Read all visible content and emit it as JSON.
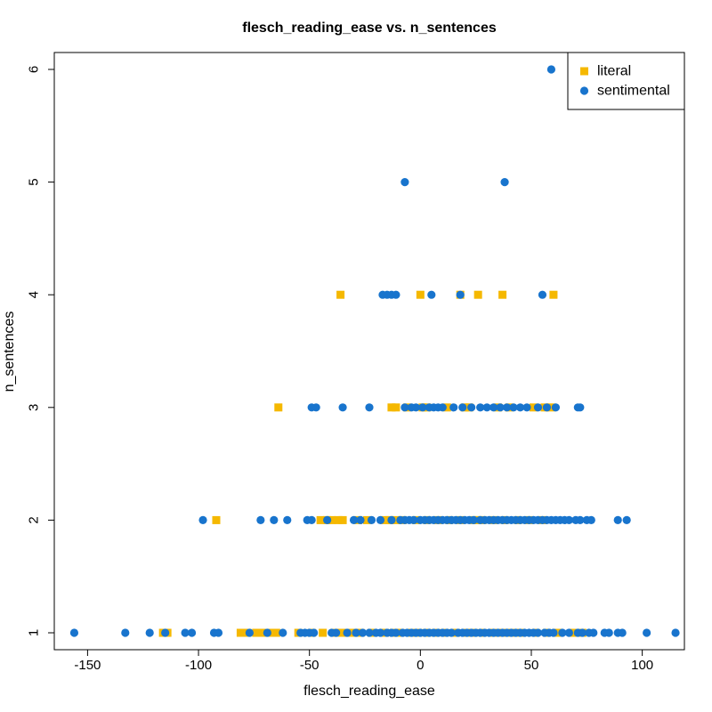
{
  "chart_data": {
    "type": "scatter",
    "title": "flesch_reading_ease vs. n_sentences",
    "xlabel": "flesch_reading_ease",
    "ylabel": "n_sentences",
    "xlim": [
      -165,
      119
    ],
    "ylim": [
      0.85,
      6.15
    ],
    "xticks": [
      -150,
      -100,
      -50,
      0,
      50,
      100
    ],
    "yticks": [
      1,
      2,
      3,
      4,
      5,
      6
    ],
    "grid": false,
    "legend_position": "top-right",
    "series": [
      {
        "name": "literal",
        "marker": "square",
        "color": "#F5B800",
        "points": [
          [
            -36,
            4
          ],
          [
            0,
            4
          ],
          [
            18,
            4
          ],
          [
            26,
            4
          ],
          [
            37,
            4
          ],
          [
            60,
            4
          ],
          [
            -64,
            3
          ],
          [
            -13,
            3
          ],
          [
            -11,
            3
          ],
          [
            -6,
            3
          ],
          [
            1,
            3
          ],
          [
            3,
            3
          ],
          [
            12,
            3
          ],
          [
            20,
            3
          ],
          [
            22,
            3
          ],
          [
            35,
            3
          ],
          [
            40,
            3
          ],
          [
            51,
            3
          ],
          [
            56,
            3
          ],
          [
            59,
            3
          ],
          [
            -92,
            2
          ],
          [
            -45,
            2
          ],
          [
            -42,
            2
          ],
          [
            -40,
            2
          ],
          [
            -37,
            2
          ],
          [
            -35,
            2
          ],
          [
            -28,
            2
          ],
          [
            -24,
            2
          ],
          [
            -16,
            2
          ],
          [
            -14,
            2
          ],
          [
            -11,
            2
          ],
          [
            -8,
            2
          ],
          [
            -2,
            2
          ],
          [
            3,
            2
          ],
          [
            8,
            2
          ],
          [
            13,
            2
          ],
          [
            18,
            2
          ],
          [
            24,
            2
          ],
          [
            26,
            2
          ],
          [
            28,
            2
          ],
          [
            33,
            2
          ],
          [
            38,
            2
          ],
          [
            44,
            2
          ],
          [
            49,
            2
          ],
          [
            55,
            2
          ],
          [
            -116,
            1
          ],
          [
            -114,
            1
          ],
          [
            -81,
            1
          ],
          [
            -78,
            1
          ],
          [
            -74,
            1
          ],
          [
            -72,
            1
          ],
          [
            -70,
            1
          ],
          [
            -67,
            1
          ],
          [
            -65,
            1
          ],
          [
            -55,
            1
          ],
          [
            -49,
            1
          ],
          [
            -44,
            1
          ],
          [
            -38,
            1
          ],
          [
            -35,
            1
          ],
          [
            -31,
            1
          ],
          [
            -27,
            1
          ],
          [
            -22,
            1
          ],
          [
            -16,
            1
          ],
          [
            -12,
            1
          ],
          [
            -9,
            1
          ],
          [
            -4,
            1
          ],
          [
            -1,
            1
          ],
          [
            3,
            1
          ],
          [
            7,
            1
          ],
          [
            11,
            1
          ],
          [
            16,
            1
          ],
          [
            21,
            1
          ],
          [
            24,
            1
          ],
          [
            28,
            1
          ],
          [
            33,
            1
          ],
          [
            37,
            1
          ],
          [
            41,
            1
          ],
          [
            45,
            1
          ],
          [
            52,
            1
          ],
          [
            57,
            1
          ],
          [
            62,
            1
          ],
          [
            69,
            1
          ],
          [
            73,
            1
          ]
        ]
      },
      {
        "name": "sentimental",
        "marker": "circle",
        "color": "#1874CD",
        "points": [
          [
            59,
            6
          ],
          [
            -7,
            5
          ],
          [
            38,
            5
          ],
          [
            -17,
            4
          ],
          [
            -15,
            4
          ],
          [
            -13,
            4
          ],
          [
            -11,
            4
          ],
          [
            5,
            4
          ],
          [
            18,
            4
          ],
          [
            55,
            4
          ],
          [
            -49,
            3
          ],
          [
            -47,
            3
          ],
          [
            -35,
            3
          ],
          [
            -23,
            3
          ],
          [
            -7,
            3
          ],
          [
            -4,
            3
          ],
          [
            -2,
            3
          ],
          [
            1,
            3
          ],
          [
            4,
            3
          ],
          [
            6,
            3
          ],
          [
            8,
            3
          ],
          [
            10,
            3
          ],
          [
            15,
            3
          ],
          [
            19,
            3
          ],
          [
            23,
            3
          ],
          [
            27,
            3
          ],
          [
            30,
            3
          ],
          [
            33,
            3
          ],
          [
            36,
            3
          ],
          [
            39,
            3
          ],
          [
            42,
            3
          ],
          [
            45,
            3
          ],
          [
            48,
            3
          ],
          [
            53,
            3
          ],
          [
            57,
            3
          ],
          [
            61,
            3
          ],
          [
            71,
            3
          ],
          [
            72,
            3
          ],
          [
            -98,
            2
          ],
          [
            -72,
            2
          ],
          [
            -66,
            2
          ],
          [
            -60,
            2
          ],
          [
            -51,
            2
          ],
          [
            -49,
            2
          ],
          [
            -42,
            2
          ],
          [
            -30,
            2
          ],
          [
            -27,
            2
          ],
          [
            -22,
            2
          ],
          [
            -18,
            2
          ],
          [
            -13,
            2
          ],
          [
            -9,
            2
          ],
          [
            -7,
            2
          ],
          [
            -5,
            2
          ],
          [
            -3,
            2
          ],
          [
            0,
            2
          ],
          [
            2,
            2
          ],
          [
            4,
            2
          ],
          [
            6,
            2
          ],
          [
            8,
            2
          ],
          [
            10,
            2
          ],
          [
            12,
            2
          ],
          [
            14,
            2
          ],
          [
            16,
            2
          ],
          [
            18,
            2
          ],
          [
            20,
            2
          ],
          [
            22,
            2
          ],
          [
            24,
            2
          ],
          [
            27,
            2
          ],
          [
            29,
            2
          ],
          [
            31,
            2
          ],
          [
            33,
            2
          ],
          [
            35,
            2
          ],
          [
            37,
            2
          ],
          [
            39,
            2
          ],
          [
            41,
            2
          ],
          [
            43,
            2
          ],
          [
            45,
            2
          ],
          [
            47,
            2
          ],
          [
            49,
            2
          ],
          [
            51,
            2
          ],
          [
            53,
            2
          ],
          [
            55,
            2
          ],
          [
            57,
            2
          ],
          [
            59,
            2
          ],
          [
            61,
            2
          ],
          [
            63,
            2
          ],
          [
            65,
            2
          ],
          [
            67,
            2
          ],
          [
            70,
            2
          ],
          [
            72,
            2
          ],
          [
            75,
            2
          ],
          [
            77,
            2
          ],
          [
            89,
            2
          ],
          [
            93,
            2
          ],
          [
            -156,
            1
          ],
          [
            -133,
            1
          ],
          [
            -122,
            1
          ],
          [
            -115,
            1
          ],
          [
            -106,
            1
          ],
          [
            -103,
            1
          ],
          [
            -93,
            1
          ],
          [
            -91,
            1
          ],
          [
            -77,
            1
          ],
          [
            -69,
            1
          ],
          [
            -62,
            1
          ],
          [
            -54,
            1
          ],
          [
            -52,
            1
          ],
          [
            -50,
            1
          ],
          [
            -48,
            1
          ],
          [
            -40,
            1
          ],
          [
            -38,
            1
          ],
          [
            -33,
            1
          ],
          [
            -29,
            1
          ],
          [
            -26,
            1
          ],
          [
            -23,
            1
          ],
          [
            -20,
            1
          ],
          [
            -18,
            1
          ],
          [
            -15,
            1
          ],
          [
            -13,
            1
          ],
          [
            -11,
            1
          ],
          [
            -8,
            1
          ],
          [
            -6,
            1
          ],
          [
            -4,
            1
          ],
          [
            -2,
            1
          ],
          [
            0,
            1
          ],
          [
            2,
            1
          ],
          [
            4,
            1
          ],
          [
            6,
            1
          ],
          [
            8,
            1
          ],
          [
            10,
            1
          ],
          [
            12,
            1
          ],
          [
            14,
            1
          ],
          [
            17,
            1
          ],
          [
            19,
            1
          ],
          [
            21,
            1
          ],
          [
            23,
            1
          ],
          [
            25,
            1
          ],
          [
            27,
            1
          ],
          [
            29,
            1
          ],
          [
            31,
            1
          ],
          [
            33,
            1
          ],
          [
            35,
            1
          ],
          [
            37,
            1
          ],
          [
            39,
            1
          ],
          [
            41,
            1
          ],
          [
            43,
            1
          ],
          [
            45,
            1
          ],
          [
            47,
            1
          ],
          [
            49,
            1
          ],
          [
            51,
            1
          ],
          [
            53,
            1
          ],
          [
            56,
            1
          ],
          [
            58,
            1
          ],
          [
            60,
            1
          ],
          [
            64,
            1
          ],
          [
            67,
            1
          ],
          [
            71,
            1
          ],
          [
            73,
            1
          ],
          [
            76,
            1
          ],
          [
            78,
            1
          ],
          [
            83,
            1
          ],
          [
            85,
            1
          ],
          [
            89,
            1
          ],
          [
            91,
            1
          ],
          [
            102,
            1
          ],
          [
            115,
            1
          ]
        ]
      }
    ]
  }
}
